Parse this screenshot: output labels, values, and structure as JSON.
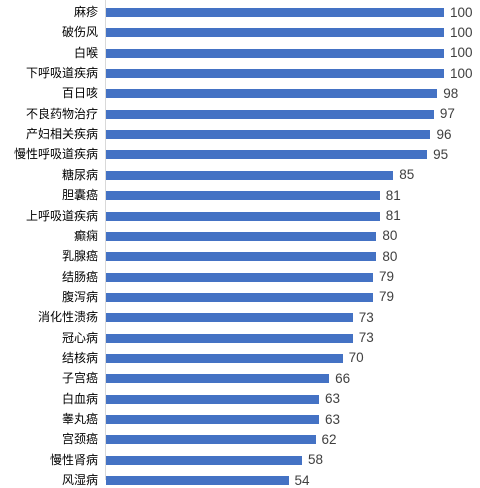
{
  "chart_data": {
    "type": "bar",
    "orientation": "horizontal",
    "categories": [
      "麻疹",
      "破伤风",
      "白喉",
      "下呼吸道疾病",
      "百日咳",
      "不良药物治疗",
      "产妇相关疾病",
      "慢性呼吸道疾病",
      "糖尿病",
      "胆囊癌",
      "上呼吸道疾病",
      "癫痫",
      "乳腺癌",
      "结肠癌",
      "腹泻病",
      "消化性溃疡",
      "冠心病",
      "结核病",
      "子宫癌",
      "白血病",
      "睾丸癌",
      "宫颈癌",
      "慢性肾病",
      "风湿病"
    ],
    "values": [
      100,
      100,
      100,
      100,
      98,
      97,
      96,
      95,
      85,
      81,
      81,
      80,
      80,
      79,
      79,
      73,
      73,
      70,
      66,
      63,
      63,
      62,
      58,
      54
    ],
    "xlim": [
      0,
      100
    ],
    "bar_color": "#4472c4",
    "data_labels": true,
    "title": "",
    "xlabel": "",
    "ylabel": ""
  }
}
